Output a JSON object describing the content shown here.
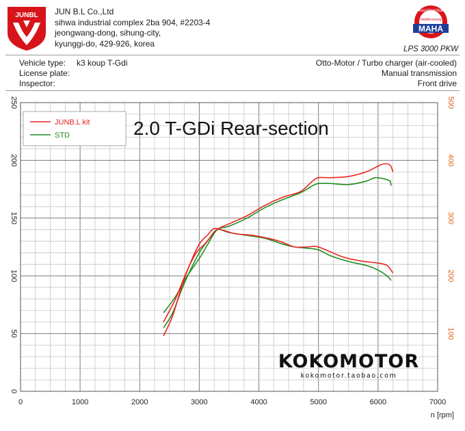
{
  "header": {
    "company_name": "JUN B.L Co.,Ltd",
    "address_lines": [
      "sihwa industrial complex 2ba 904, #2203-4",
      "jeongwang-dong, sihung-city,",
      "kyunggi-do, 429-926, korea"
    ],
    "logo_text": "JUNBL",
    "maha_top": "Maschinenbau",
    "maha_bottom": "Haldenwang",
    "maha_text": "MAHA",
    "model": "LPS 3000 PKW"
  },
  "vehicle": {
    "type_label": "Vehicle type:",
    "type_value": "k3 koup T-Gdi",
    "plate_label": "License plate:",
    "inspector_label": "Inspector:",
    "engine": "Otto-Motor / Turbo charger (air-cooled)",
    "transmission": "Manual transmission",
    "drive": "Front drive"
  },
  "watermark": {
    "brand": "KOKOMOTOR",
    "url": "kokomotor.taobao.com"
  },
  "colors": {
    "junbl": "#e8231f",
    "std": "#1e8c1e",
    "right_axis": "#e0661c",
    "logo": "#d8141b"
  },
  "chart_data": {
    "type": "line",
    "title": "2.0 T-GDi Rear-section",
    "xlabel": "n [rpm]",
    "xlim": [
      0,
      7000
    ],
    "ylim_left": [
      0,
      250
    ],
    "ylim_right": [
      0,
      500
    ],
    "x_ticks": [
      "0",
      "1000",
      "2000",
      "3000",
      "4000",
      "5000",
      "6000",
      "7000"
    ],
    "y_left_ticks": [
      "0",
      "50",
      "100",
      "150",
      "200",
      "250"
    ],
    "y_right_ticks": [
      "100",
      "200",
      "300",
      "400",
      "500"
    ],
    "grid": true,
    "legend_position": "top-left",
    "series": [
      {
        "name": "JUNB.L kit",
        "color": "#e8231f",
        "curves": [
          {
            "axis": "left",
            "points": [
              [
                2400,
                60
              ],
              [
                2600,
                80
              ],
              [
                2800,
                105
              ],
              [
                2950,
                120
              ],
              [
                3100,
                128
              ],
              [
                3300,
                140
              ],
              [
                3500,
                145
              ],
              [
                3800,
                152
              ],
              [
                4100,
                161
              ],
              [
                4400,
                168
              ],
              [
                4700,
                173
              ],
              [
                4900,
                182
              ],
              [
                5000,
                185
              ],
              [
                5200,
                185
              ],
              [
                5500,
                186
              ],
              [
                5800,
                190
              ],
              [
                6000,
                195
              ],
              [
                6100,
                197
              ],
              [
                6200,
                196
              ],
              [
                6250,
                190
              ]
            ]
          },
          {
            "axis": "right",
            "points": [
              [
                2400,
                96
              ],
              [
                2550,
                130
              ],
              [
                2700,
                180
              ],
              [
                2850,
                222
              ],
              [
                3000,
                255
              ],
              [
                3150,
                272
              ],
              [
                3250,
                282
              ],
              [
                3400,
                279
              ],
              [
                3600,
                273
              ],
              [
                3900,
                270
              ],
              [
                4200,
                264
              ],
              [
                4400,
                258
              ],
              [
                4600,
                250
              ],
              [
                4800,
                250
              ],
              [
                4950,
                251
              ],
              [
                5100,
                246
              ],
              [
                5400,
                233
              ],
              [
                5700,
                226
              ],
              [
                6000,
                222
              ],
              [
                6150,
                218
              ],
              [
                6250,
                205
              ]
            ]
          }
        ]
      },
      {
        "name": "STD",
        "color": "#1e8c1e",
        "curves": [
          {
            "axis": "left",
            "points": [
              [
                2400,
                68
              ],
              [
                2600,
                82
              ],
              [
                2800,
                100
              ],
              [
                3000,
                115
              ],
              [
                3150,
                128
              ],
              [
                3300,
                140
              ],
              [
                3500,
                143
              ],
              [
                3800,
                150
              ],
              [
                4100,
                159
              ],
              [
                4400,
                166
              ],
              [
                4700,
                172
              ],
              [
                4900,
                178
              ],
              [
                5000,
                180
              ],
              [
                5200,
                180
              ],
              [
                5500,
                179
              ],
              [
                5800,
                182
              ],
              [
                5950,
                185
              ],
              [
                6100,
                184
              ],
              [
                6200,
                182
              ],
              [
                6220,
                178
              ]
            ]
          },
          {
            "axis": "right",
            "points": [
              [
                2400,
                110
              ],
              [
                2550,
                135
              ],
              [
                2700,
                175
              ],
              [
                2850,
                210
              ],
              [
                3000,
                240
              ],
              [
                3150,
                262
              ],
              [
                3300,
                280
              ],
              [
                3500,
                275
              ],
              [
                3800,
                270
              ],
              [
                4100,
                265
              ],
              [
                4400,
                255
              ],
              [
                4600,
                250
              ],
              [
                4800,
                248
              ],
              [
                5000,
                245
              ],
              [
                5200,
                235
              ],
              [
                5500,
                225
              ],
              [
                5800,
                218
              ],
              [
                6000,
                210
              ],
              [
                6150,
                200
              ],
              [
                6220,
                192
              ]
            ]
          }
        ]
      }
    ]
  }
}
